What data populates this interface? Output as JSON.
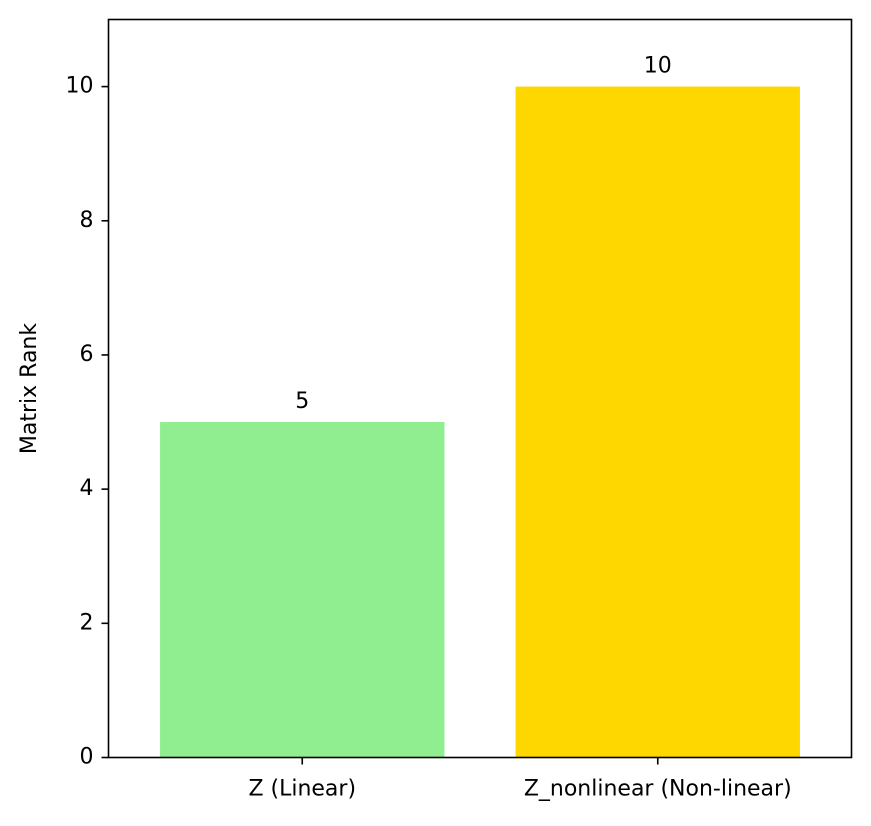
{
  "chart_data": {
    "type": "bar",
    "categories": [
      "Z (Linear)",
      "Z_nonlinear (Non-linear)"
    ],
    "values": [
      5,
      10
    ],
    "data_labels": [
      "5",
      "10"
    ],
    "colors": [
      "#90ee90",
      "#ffd700"
    ],
    "title": "",
    "xlabel": "",
    "ylabel": "Matrix Rank",
    "ylim": [
      0,
      11
    ],
    "yticks": [
      0,
      2,
      4,
      6,
      8,
      10
    ],
    "ytick_labels": [
      "0",
      "2",
      "4",
      "6",
      "8",
      "10"
    ],
    "grid": false,
    "legend": false
  }
}
